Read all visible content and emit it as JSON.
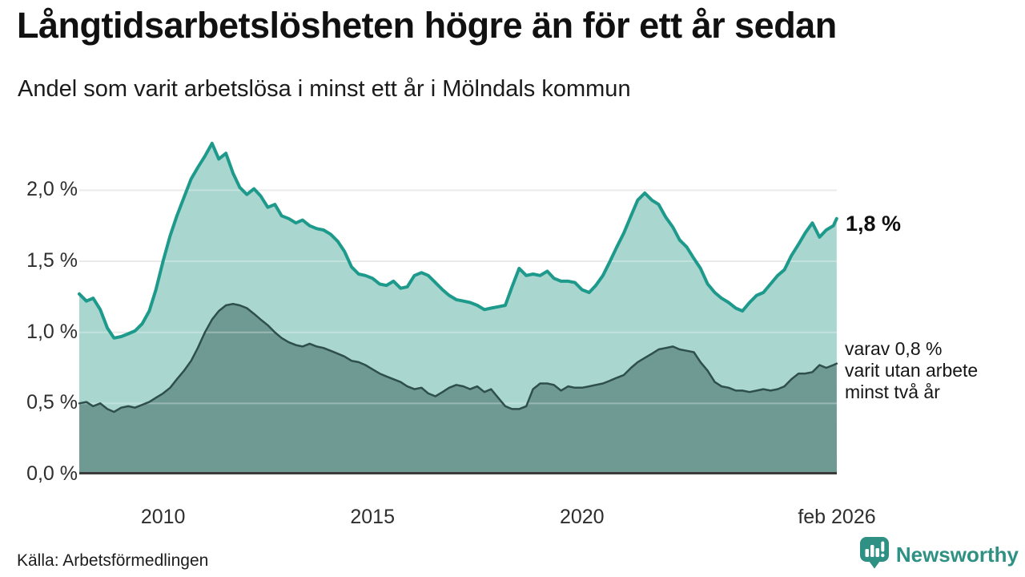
{
  "header": {
    "title": "Långtidsarbetslösheten högre än för ett år sedan",
    "subtitle": "Andel som varit arbetslösa i minst ett år i Mölndals kommun"
  },
  "footer": {
    "source": "Källa: Arbetsförmedlingen",
    "brand": "Newsworthy"
  },
  "colors": {
    "title_text": "#111111",
    "axis_text": "#2e2e2e",
    "gridline": "#e2e2e2",
    "baseline": "#3b3b3b",
    "brand_teal": "#2e9183",
    "total_line": "#1d9a8b",
    "total_fill": "#a9d6ce",
    "subset_line": "#2e4f4b",
    "subset_fill": "#6f9a93"
  },
  "chart_data": {
    "type": "area",
    "title": "Långtidsarbetslösheten högre än för ett år sedan",
    "subtitle": "Andel som varit arbetslösa i minst ett år i Mölndals kommun",
    "unit": "%",
    "grid": true,
    "x_range": [
      2008.0,
      2026.083
    ],
    "y_axis_top_value": 2.38,
    "ylim": [
      0.0,
      2.38
    ],
    "y_ticks": [
      {
        "label": "0,0 %",
        "value": 0.0
      },
      {
        "label": "0,5 %",
        "value": 0.5
      },
      {
        "label": "1,0 %",
        "value": 1.0
      },
      {
        "label": "1,5 %",
        "value": 1.5
      },
      {
        "label": "2,0 %",
        "value": 2.0
      }
    ],
    "x_ticks": [
      {
        "label": "2010",
        "year": 2010.0
      },
      {
        "label": "2015",
        "year": 2015.0
      },
      {
        "label": "2020",
        "year": 2020.0
      },
      {
        "label": "feb 2026",
        "year": 2026.083
      }
    ],
    "annotations": {
      "latest_label": "1,8 %",
      "subset_line1": "varav 0,8 %",
      "subset_line2": "varit utan arbete",
      "subset_line3": "minst två år"
    },
    "x": [
      2008.0,
      2008.17,
      2008.33,
      2008.5,
      2008.67,
      2008.83,
      2009.0,
      2009.17,
      2009.33,
      2009.5,
      2009.67,
      2009.83,
      2010.0,
      2010.17,
      2010.33,
      2010.5,
      2010.67,
      2010.83,
      2011.0,
      2011.17,
      2011.33,
      2011.5,
      2011.67,
      2011.83,
      2012.0,
      2012.17,
      2012.33,
      2012.5,
      2012.67,
      2012.83,
      2013.0,
      2013.17,
      2013.33,
      2013.5,
      2013.67,
      2013.83,
      2014.0,
      2014.17,
      2014.33,
      2014.5,
      2014.67,
      2014.83,
      2015.0,
      2015.17,
      2015.33,
      2015.5,
      2015.67,
      2015.83,
      2016.0,
      2016.17,
      2016.33,
      2016.5,
      2016.67,
      2016.83,
      2017.0,
      2017.17,
      2017.33,
      2017.5,
      2017.67,
      2017.83,
      2018.0,
      2018.17,
      2018.33,
      2018.5,
      2018.67,
      2018.83,
      2019.0,
      2019.17,
      2019.33,
      2019.5,
      2019.67,
      2019.83,
      2020.0,
      2020.17,
      2020.33,
      2020.5,
      2020.67,
      2020.83,
      2021.0,
      2021.17,
      2021.33,
      2021.5,
      2021.67,
      2021.83,
      2022.0,
      2022.17,
      2022.33,
      2022.5,
      2022.67,
      2022.83,
      2023.0,
      2023.17,
      2023.33,
      2023.5,
      2023.67,
      2023.83,
      2024.0,
      2024.17,
      2024.33,
      2024.5,
      2024.67,
      2024.83,
      2025.0,
      2025.17,
      2025.33,
      2025.5,
      2025.67,
      2025.83,
      2026.0,
      2026.08
    ],
    "series": [
      {
        "id": "total",
        "name": "Arbetslösa minst ett år",
        "last_value_label": "1,8 %",
        "line_color": "#1d9a8b",
        "fill_color": "#a9d6ce",
        "line_width": 4,
        "values": [
          1.27,
          1.22,
          1.24,
          1.16,
          1.03,
          0.96,
          0.97,
          0.99,
          1.01,
          1.06,
          1.15,
          1.3,
          1.5,
          1.68,
          1.82,
          1.95,
          2.08,
          2.16,
          2.24,
          2.33,
          2.22,
          2.26,
          2.12,
          2.02,
          1.97,
          2.01,
          1.96,
          1.88,
          1.9,
          1.82,
          1.8,
          1.77,
          1.79,
          1.75,
          1.73,
          1.72,
          1.69,
          1.64,
          1.57,
          1.46,
          1.41,
          1.4,
          1.38,
          1.34,
          1.33,
          1.36,
          1.31,
          1.32,
          1.4,
          1.42,
          1.4,
          1.35,
          1.3,
          1.26,
          1.23,
          1.22,
          1.21,
          1.19,
          1.16,
          1.17,
          1.18,
          1.19,
          1.32,
          1.45,
          1.4,
          1.41,
          1.4,
          1.43,
          1.38,
          1.36,
          1.36,
          1.35,
          1.3,
          1.28,
          1.33,
          1.4,
          1.5,
          1.6,
          1.7,
          1.82,
          1.93,
          1.98,
          1.93,
          1.9,
          1.81,
          1.74,
          1.65,
          1.6,
          1.52,
          1.45,
          1.34,
          1.28,
          1.24,
          1.21,
          1.17,
          1.15,
          1.21,
          1.26,
          1.28,
          1.34,
          1.4,
          1.44,
          1.54,
          1.62,
          1.7,
          1.77,
          1.67,
          1.72,
          1.75,
          1.8
        ]
      },
      {
        "id": "subset",
        "name": "Arbetslösa minst två år",
        "last_value_label": "0,8 %",
        "line_color": "#2e4f4b",
        "fill_color": "#6f9a93",
        "line_width": 2.5,
        "values": [
          0.5,
          0.51,
          0.48,
          0.5,
          0.46,
          0.44,
          0.47,
          0.48,
          0.47,
          0.49,
          0.51,
          0.54,
          0.57,
          0.61,
          0.67,
          0.73,
          0.8,
          0.89,
          1.0,
          1.09,
          1.15,
          1.19,
          1.2,
          1.19,
          1.17,
          1.13,
          1.09,
          1.05,
          1.0,
          0.96,
          0.93,
          0.91,
          0.9,
          0.92,
          0.9,
          0.89,
          0.87,
          0.85,
          0.83,
          0.8,
          0.79,
          0.77,
          0.74,
          0.71,
          0.69,
          0.67,
          0.65,
          0.62,
          0.6,
          0.61,
          0.57,
          0.55,
          0.58,
          0.61,
          0.63,
          0.62,
          0.6,
          0.62,
          0.58,
          0.6,
          0.54,
          0.48,
          0.46,
          0.46,
          0.48,
          0.6,
          0.64,
          0.64,
          0.63,
          0.59,
          0.62,
          0.61,
          0.61,
          0.62,
          0.63,
          0.64,
          0.66,
          0.68,
          0.7,
          0.75,
          0.79,
          0.82,
          0.85,
          0.88,
          0.89,
          0.9,
          0.88,
          0.87,
          0.86,
          0.79,
          0.73,
          0.65,
          0.62,
          0.61,
          0.59,
          0.59,
          0.58,
          0.59,
          0.6,
          0.59,
          0.6,
          0.62,
          0.67,
          0.71,
          0.71,
          0.72,
          0.77,
          0.75,
          0.77,
          0.78
        ]
      }
    ]
  }
}
